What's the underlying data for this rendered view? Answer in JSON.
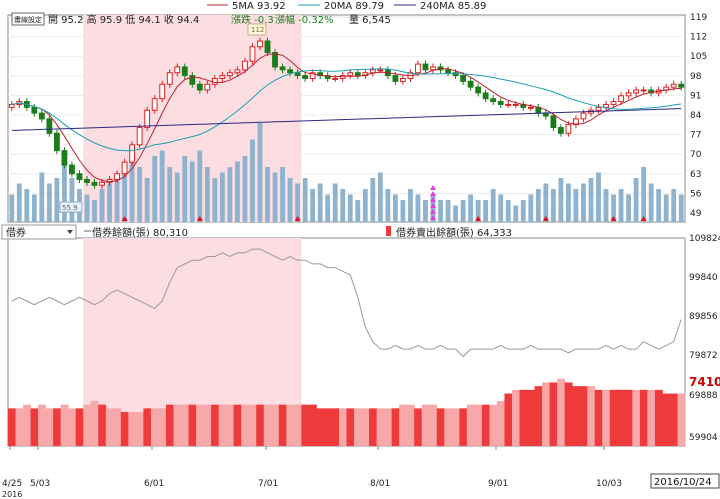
{
  "colors": {
    "up": "#e02020",
    "down": "#1a7d1a",
    "ma5": "#c02030",
    "ma20": "#1aa0b0",
    "ma240": "#2a2a80",
    "vol": "#8fb3cf",
    "shade": "#fbdde2",
    "balance_light": "#f7a8a8",
    "balance_dark": "#ee3a3a",
    "upper_line": "#9a9a9a",
    "volume_marker": "#e01020",
    "magenta": "#e040e0",
    "price_tag": "#c80000"
  },
  "legend": {
    "ma5": "5MA 93.92",
    "ma20": "20MA 89.79",
    "ma240": "240MA 85.89"
  },
  "quote": {
    "tool_label": "畫線設定",
    "text": "開 95.2  高 95.9  低 94.1  收 94.4",
    "change": "漲跌 -0.3",
    "change_pct": "漲幅 -0.32%",
    "volume": "量 6,545"
  },
  "upper_panel": {
    "selector_label": "借券",
    "series1_label": "借券餘額(張) 80,310",
    "series2_label": "借券賣出餘額(張) 64,333"
  },
  "price_axis": [
    "119",
    "112",
    "105",
    "98",
    "91",
    "84",
    "77",
    "70",
    "63",
    "56",
    "49"
  ],
  "lower_axis": [
    "109824",
    "99840",
    "89856",
    "79872",
    "69888",
    "59904"
  ],
  "current_value": "7410",
  "current_date": "2016/10/24",
  "annotations": {
    "high_flag": "112",
    "low_flag": "55.9"
  },
  "dates": [
    "4/25",
    "5/03",
    "6/01",
    "7/01",
    "8/01",
    "9/01",
    "10/03"
  ],
  "year_label": "2016",
  "chart_data": {
    "type": "candlestick",
    "ylim": [
      49,
      119
    ],
    "ma_lines": [
      {
        "name": "5MA",
        "value": 93.92
      },
      {
        "name": "20MA",
        "value": 89.79
      },
      {
        "name": "240MA",
        "value": 85.89
      }
    ],
    "last_bar": {
      "open": 95.2,
      "high": 95.9,
      "low": 94.1,
      "close": 94.4,
      "change": -0.3,
      "volume": 6545
    },
    "closes": [
      88,
      89,
      87,
      85,
      83,
      78,
      72,
      67,
      64,
      62,
      61,
      60,
      61,
      62,
      64,
      68,
      74,
      80,
      86,
      90,
      95,
      99,
      101,
      98,
      95,
      93,
      95,
      97,
      98,
      99,
      100,
      103,
      108,
      110,
      106,
      101,
      100,
      99,
      98,
      97,
      99,
      98,
      97,
      97,
      98,
      99,
      98,
      99,
      100,
      100,
      98,
      96,
      97,
      99,
      102,
      100,
      101,
      100,
      99,
      98,
      96,
      94,
      92,
      90,
      89,
      88,
      88,
      88,
      87,
      87,
      85,
      84,
      80,
      78,
      81,
      83,
      85,
      86,
      87,
      88,
      89,
      91,
      92,
      93,
      93,
      92,
      93,
      94,
      95,
      94
    ],
    "volumes": [
      2.5,
      3.5,
      3,
      2.5,
      4.5,
      3.5,
      4,
      5.5,
      4,
      3,
      2.5,
      2,
      3,
      3.5,
      4,
      4.5,
      5.5,
      5,
      4,
      6,
      6.5,
      5,
      4.5,
      6,
      5.5,
      6.5,
      5,
      4,
      4.5,
      5,
      5.5,
      6,
      7.5,
      9,
      5,
      4.5,
      5,
      4,
      3.5,
      4,
      3,
      3.5,
      2.5,
      3.5,
      3,
      2.5,
      2,
      3,
      4,
      4.5,
      3,
      2.5,
      2,
      3,
      2.5,
      2,
      2.5,
      2,
      2,
      1.5,
      2,
      2.5,
      2,
      2,
      3,
      2.5,
      2,
      1.5,
      2,
      2.5,
      3,
      3.5,
      3,
      4,
      3.5,
      3,
      3.5,
      4,
      4.5,
      3,
      2.5,
      3,
      2.5,
      4,
      5,
      3.5,
      3,
      2.5,
      3,
      2.5
    ],
    "borrow_balance": [
      95,
      96,
      95,
      94,
      95,
      96,
      95,
      94,
      95,
      96,
      95,
      94,
      95,
      97,
      98,
      97,
      96,
      95,
      94,
      93,
      95,
      100,
      104,
      105,
      106,
      106,
      107,
      107,
      108,
      107,
      108,
      108,
      109,
      109,
      108,
      107,
      106,
      107,
      106,
      106,
      105,
      105,
      104,
      104,
      103,
      102,
      96,
      88,
      84,
      82,
      82,
      83,
      82,
      82,
      83,
      82,
      82,
      83,
      82,
      82,
      80,
      82,
      82,
      82,
      82,
      83,
      82,
      82,
      82,
      83,
      82,
      82,
      82,
      82,
      81,
      82,
      82,
      82,
      82,
      83,
      82,
      83,
      82,
      82,
      84,
      83,
      82,
      83,
      84,
      90
    ],
    "short_balance": [
      66,
      66,
      67,
      66,
      67,
      66,
      66,
      67,
      66,
      66,
      67,
      68,
      67,
      66,
      66,
      65,
      65,
      65,
      66,
      66,
      66,
      67,
      67,
      67,
      67,
      67,
      67,
      67,
      67,
      67,
      67,
      67,
      67,
      67,
      67,
      67,
      67,
      67,
      67,
      67,
      67,
      66,
      66,
      66,
      66,
      66,
      66,
      66,
      66,
      66,
      66,
      66,
      67,
      67,
      66,
      67,
      67,
      66,
      66,
      66,
      66,
      67,
      67,
      67,
      67,
      68,
      70,
      71,
      71,
      71,
      72,
      73,
      73,
      74,
      73,
      72,
      72,
      72,
      71,
      71,
      71,
      71,
      71,
      71,
      71,
      71,
      71,
      70,
      70,
      70
    ]
  }
}
